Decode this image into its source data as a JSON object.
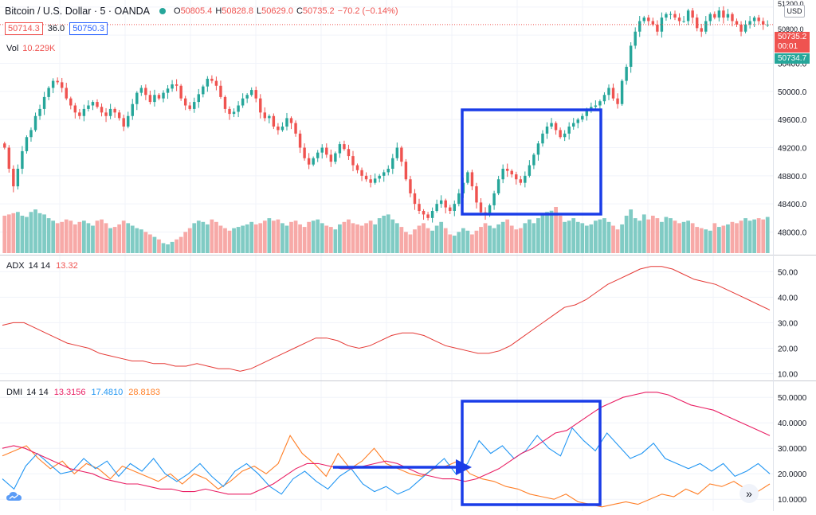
{
  "symbol": {
    "title": "Bitcoin / U.S. Dollar · 5 · OANDA",
    "open_label": "O",
    "open": "50805.4",
    "high_label": "H",
    "high": "50828.8",
    "low_label": "L",
    "low": "50629.0",
    "close_label": "C",
    "close": "50735.2",
    "change": "−70.2 (−0.14%)"
  },
  "quote": {
    "sell": "50714.3",
    "spread": "36.0",
    "buy": "50750.3"
  },
  "volume_legend": {
    "name": "Vol",
    "value": "10.229K"
  },
  "adx_legend": {
    "name": "ADX",
    "params": "14 14",
    "value": "13.32"
  },
  "dmi_legend": {
    "name": "DMI",
    "params": "14 14",
    "adx": "13.3156",
    "plus_di": "17.4810",
    "minus_di": "28.8183"
  },
  "price_axis": {
    "currency": "USD",
    "last_price": "50735.2",
    "countdown": "00:01",
    "bid_price": "50734.7",
    "top_tick": "51200.0",
    "upper_tick": "50800.0"
  },
  "colors": {
    "up": "#26a69a",
    "down": "#ef5350",
    "vol_up": "#80cbc4",
    "vol_down": "#f7a9a7",
    "adx": "#e53935",
    "dmi_adx": "#e91e63",
    "plus_di": "#2196f3",
    "minus_di": "#ff7f27",
    "highlight": "#1a3de8"
  },
  "icons": {
    "tv_logo": "tradingview-cloud-icon",
    "scroll": "double-chevron-right-icon"
  },
  "chart_data": [
    {
      "type": "candlestick",
      "title": "Bitcoin / U.S. Dollar, 5m (OANDA)",
      "ylim": [
        47700,
        51300
      ],
      "yticks": [
        48000,
        48400,
        48800,
        49200,
        49600,
        50000,
        50400,
        50800,
        51200
      ],
      "closes": [
        49200,
        48900,
        48650,
        48900,
        49150,
        49350,
        49450,
        49650,
        49750,
        49920,
        50050,
        50150,
        50130,
        50050,
        49900,
        49800,
        49700,
        49650,
        49750,
        49800,
        49850,
        49780,
        49700,
        49650,
        49750,
        49700,
        49620,
        49500,
        49650,
        49820,
        49980,
        50050,
        49950,
        49850,
        49950,
        49900,
        49980,
        50040,
        50100,
        50080,
        49900,
        49800,
        49750,
        49850,
        49960,
        50070,
        50180,
        50150,
        50080,
        49920,
        49750,
        49680,
        49710,
        49800,
        49900,
        49950,
        50020,
        49900,
        49700,
        49620,
        49650,
        49500,
        49450,
        49500,
        49620,
        49550,
        49400,
        49200,
        49050,
        48960,
        49050,
        49130,
        49200,
        49100,
        49000,
        49120,
        49250,
        49180,
        49080,
        48950,
        48880,
        48800,
        48750,
        48700,
        48760,
        48800,
        48850,
        48900,
        49050,
        49200,
        49000,
        48750,
        48550,
        48400,
        48300,
        48250,
        48200,
        48300,
        48400,
        48450,
        48350,
        48300,
        48400,
        48550,
        48700,
        48850,
        48650,
        48420,
        48280,
        48250,
        48380,
        48550,
        48750,
        48900,
        48870,
        48820,
        48750,
        48700,
        48800,
        48950,
        49100,
        49260,
        49400,
        49500,
        49550,
        49450,
        49350,
        49400,
        49500,
        49550,
        49600,
        49650,
        49720,
        49780,
        49800,
        49860,
        49950,
        50050,
        49900,
        49820,
        50150,
        50350,
        50650,
        50850,
        51000,
        51050,
        51000,
        50950,
        50850,
        51050,
        51100,
        51100,
        51050,
        51000,
        51000,
        51150,
        51050,
        50900,
        50850,
        51000,
        51100,
        51050,
        51150,
        51050,
        51100,
        51000,
        50950,
        50850,
        50950,
        51000,
        51050,
        51000,
        50950,
        50950
      ],
      "volumes": [
        60,
        62,
        64,
        66,
        60,
        58,
        66,
        70,
        64,
        62,
        56,
        52,
        48,
        50,
        54,
        52,
        46,
        50,
        52,
        48,
        44,
        52,
        54,
        48,
        40,
        42,
        46,
        52,
        48,
        44,
        40,
        38,
        34,
        30,
        26,
        22,
        16,
        14,
        18,
        22,
        26,
        34,
        40,
        48,
        52,
        50,
        46,
        54,
        50,
        44,
        40,
        36,
        40,
        42,
        44,
        46,
        50,
        46,
        48,
        52,
        56,
        52,
        54,
        48,
        44,
        50,
        52,
        46,
        42,
        50,
        52,
        54,
        48,
        44,
        42,
        38,
        46,
        50,
        54,
        48,
        46,
        44,
        48,
        52,
        46,
        56,
        60,
        62,
        54,
        48,
        42,
        34,
        30,
        38,
        44,
        48,
        40,
        36,
        44,
        50,
        40,
        30,
        28,
        34,
        40,
        36,
        30,
        36,
        42,
        48,
        44,
        40,
        46,
        50,
        54,
        44,
        38,
        40,
        48,
        54,
        48,
        56,
        62,
        66,
        68,
        74,
        60,
        50,
        52,
        56,
        50,
        48,
        44,
        46,
        52,
        54,
        56,
        50,
        44,
        38,
        46,
        60,
        70,
        56,
        52,
        62,
        54,
        60,
        56,
        50,
        58,
        56,
        52,
        48,
        50,
        52,
        48,
        42,
        40,
        38,
        36,
        48,
        42,
        44,
        46,
        50,
        48,
        52,
        56,
        52,
        54,
        56,
        54,
        58,
        60,
        56,
        62
      ]
    },
    {
      "type": "line",
      "title": "ADX 14 14",
      "ylim": [
        8,
        56
      ],
      "yticks": [
        10,
        20,
        30,
        40,
        50
      ],
      "values": [
        29,
        30,
        30,
        28,
        26,
        24,
        22,
        21,
        20,
        18,
        17,
        16,
        15,
        15,
        14,
        14,
        13,
        13,
        14,
        13,
        12,
        12,
        11,
        12,
        14,
        16,
        18,
        20,
        22,
        24,
        24,
        23,
        21,
        20,
        21,
        23,
        25,
        26,
        26,
        25,
        23,
        21,
        20,
        19,
        18,
        18,
        19,
        21,
        24,
        27,
        30,
        33,
        36,
        37,
        39,
        42,
        45,
        47,
        49,
        51,
        52,
        52,
        51,
        49,
        47,
        46,
        45,
        43,
        41,
        39,
        37,
        35
      ]
    },
    {
      "type": "line",
      "title": "DMI 14 14",
      "ylim": [
        6,
        56
      ],
      "yticks": [
        10,
        20,
        30,
        40,
        50
      ],
      "series": [
        {
          "name": "ADX",
          "values": [
            30,
            31,
            30,
            28,
            26,
            24,
            22,
            21,
            20,
            18,
            17,
            16,
            16,
            15,
            14,
            14,
            13,
            13,
            14,
            13,
            12,
            12,
            12,
            14,
            16,
            19,
            22,
            24,
            24,
            23,
            22,
            22,
            23,
            24,
            25,
            24,
            22,
            20,
            19,
            18,
            18,
            17,
            18,
            20,
            22,
            25,
            28,
            30,
            33,
            36,
            37,
            40,
            43,
            46,
            48,
            50,
            51,
            52,
            52,
            51,
            49,
            47,
            46,
            45,
            43,
            41,
            39,
            37,
            35
          ]
        },
        {
          "name": "+DI",
          "values": [
            18,
            14,
            23,
            28,
            24,
            20,
            21,
            26,
            22,
            25,
            19,
            24,
            21,
            26,
            20,
            17,
            20,
            24,
            19,
            15,
            21,
            24,
            20,
            15,
            12,
            18,
            21,
            17,
            14,
            19,
            22,
            16,
            13,
            15,
            12,
            14,
            18,
            22,
            26,
            20,
            24,
            33,
            28,
            31,
            26,
            29,
            35,
            30,
            27,
            38,
            33,
            29,
            36,
            31,
            26,
            28,
            32,
            26,
            24,
            22,
            24,
            21,
            24,
            19,
            21,
            24,
            20
          ]
        },
        {
          "name": "−DI",
          "values": [
            27,
            29,
            31,
            26,
            22,
            25,
            20,
            24,
            22,
            18,
            23,
            21,
            19,
            17,
            20,
            16,
            20,
            18,
            14,
            17,
            21,
            23,
            20,
            24,
            35,
            28,
            24,
            19,
            28,
            22,
            25,
            30,
            24,
            22,
            20,
            19,
            22,
            23,
            25,
            20,
            18,
            17,
            15,
            14,
            12,
            11,
            10,
            12,
            9,
            8,
            7,
            8,
            9,
            8,
            10,
            12,
            11,
            14,
            12,
            16,
            15,
            17,
            14,
            13,
            16
          ]
        }
      ]
    }
  ]
}
